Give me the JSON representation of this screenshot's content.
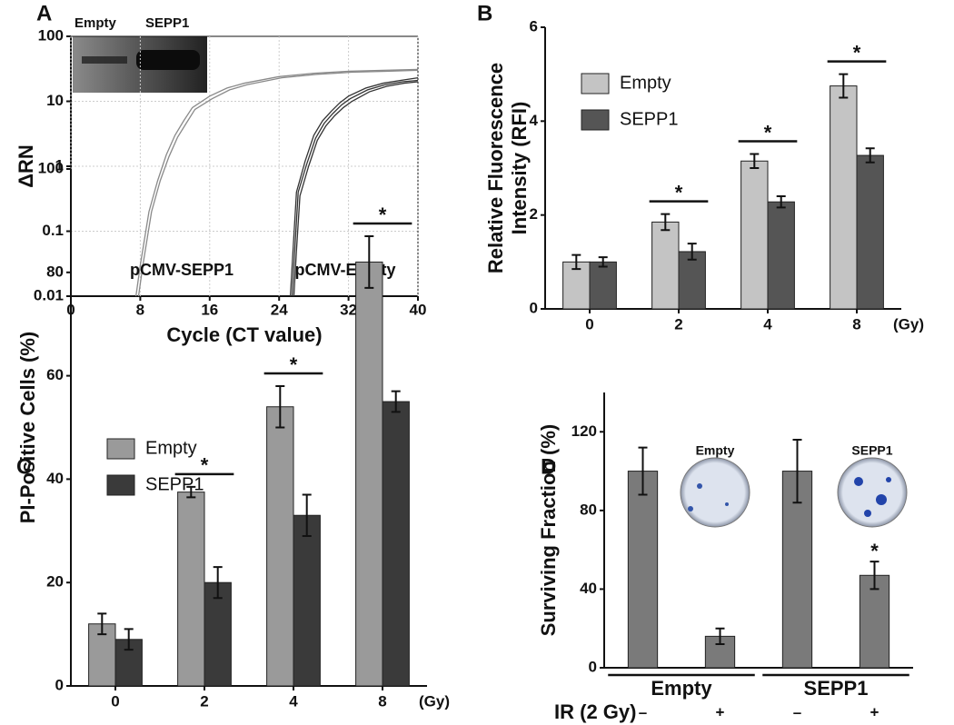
{
  "chart_data": [
    {
      "type": "line",
      "label": "A",
      "xlabel": "Cycle (CT value)",
      "ylabel": "ΔRN",
      "log_y": true,
      "grid": true,
      "xlim": [
        0,
        40
      ],
      "xticks": [
        0,
        8,
        16,
        24,
        32,
        40
      ],
      "ylim": [
        0.01,
        100
      ],
      "yticks": [
        0.01,
        0.1,
        1,
        10,
        100
      ],
      "inset_labels": [
        "Empty",
        "SEPP1"
      ],
      "annotations": [
        "pCMV-SEPP1",
        "pCMV-Empty"
      ],
      "series": [
        {
          "color": "#8a8a8a",
          "x": [
            7.5,
            8,
            9,
            10,
            11,
            12,
            13,
            14,
            16,
            18,
            20,
            24,
            28,
            32,
            36,
            40
          ],
          "values": [
            0.01,
            0.03,
            0.2,
            0.6,
            1.5,
            3,
            5,
            8,
            12,
            16,
            19,
            24,
            27,
            29,
            30,
            31
          ]
        },
        {
          "color": "#8a8a8a",
          "x": [
            7.8,
            8.3,
            9.3,
            10.3,
            11.3,
            12.3,
            13.3,
            14.3,
            16.3,
            18.3,
            20.3,
            24.3,
            28.3,
            32.3,
            36.3,
            40
          ],
          "values": [
            0.01,
            0.03,
            0.2,
            0.6,
            1.4,
            2.8,
            4.6,
            7.5,
            11,
            15,
            18,
            23,
            26,
            28,
            29,
            30
          ]
        },
        {
          "color": "#333333",
          "x": [
            25.3,
            25.6,
            26,
            27,
            28,
            29,
            30,
            31,
            32,
            34,
            36,
            38,
            40
          ],
          "values": [
            0.01,
            0.05,
            0.4,
            1.2,
            3,
            5,
            7,
            9.5,
            12,
            16,
            19,
            21,
            23
          ]
        },
        {
          "color": "#333333",
          "x": [
            25.5,
            25.8,
            26.2,
            27.2,
            28.2,
            29.2,
            30.2,
            31.2,
            32.2,
            34.2,
            36.2,
            38.2,
            40
          ],
          "values": [
            0.01,
            0.05,
            0.4,
            1.1,
            2.7,
            4.6,
            6.5,
            8.8,
            11,
            15,
            18,
            20,
            21
          ]
        },
        {
          "color": "#333333",
          "x": [
            25.7,
            26,
            26.4,
            27.4,
            28.4,
            29.4,
            30.4,
            31.4,
            32.4,
            34.4,
            36.4,
            38.4,
            40
          ],
          "values": [
            0.01,
            0.05,
            0.35,
            1,
            2.5,
            4.2,
            6,
            8,
            10,
            14,
            17,
            19,
            20
          ]
        }
      ]
    },
    {
      "type": "bar",
      "label": "B",
      "ylabel": [
        "Relative Fluorescence",
        "Intensity (RFI)"
      ],
      "x_unit": "(Gy)",
      "categories": [
        "0",
        "2",
        "4",
        "8"
      ],
      "ylim": [
        0,
        6
      ],
      "yticks": [
        0,
        2,
        4,
        6
      ],
      "significance": [
        null,
        "*",
        "*",
        "*"
      ],
      "series": [
        {
          "name": "Empty",
          "color": "#c4c4c4",
          "values": [
            1.0,
            1.85,
            3.15,
            4.75
          ],
          "errors": [
            0.15,
            0.17,
            0.15,
            0.25
          ]
        },
        {
          "name": "SEPP1",
          "color": "#555555",
          "values": [
            1.0,
            1.22,
            2.28,
            3.27
          ],
          "errors": [
            0.1,
            0.17,
            0.12,
            0.15
          ]
        }
      ]
    },
    {
      "type": "bar",
      "label": "C",
      "ylabel": [
        "PI-Positive Cells (%)"
      ],
      "x_unit": "(Gy)",
      "categories": [
        "0",
        "2",
        "4",
        "8"
      ],
      "ylim": [
        0,
        100
      ],
      "yticks": [
        0,
        20,
        40,
        60,
        80,
        100
      ],
      "significance": [
        null,
        "*",
        "*",
        "*"
      ],
      "series": [
        {
          "name": "Empty",
          "color": "#9a9a9a",
          "values": [
            12,
            37.5,
            54,
            82
          ],
          "errors": [
            2,
            1,
            4,
            5
          ]
        },
        {
          "name": "SEPP1",
          "color": "#3a3a3a",
          "values": [
            9,
            20,
            33,
            55
          ],
          "errors": [
            2,
            3,
            4,
            2
          ]
        }
      ]
    },
    {
      "type": "bar",
      "label": "D",
      "ylabel": [
        "Surviving Fraction (%)"
      ],
      "row_label": "IR (2 Gy)",
      "categories": [
        "–",
        "+",
        "–",
        "+"
      ],
      "groups": [
        "Empty",
        "SEPP1"
      ],
      "inset_labels": [
        "Empty",
        "SEPP1"
      ],
      "ylim": [
        0,
        140
      ],
      "yticks": [
        0,
        40,
        80,
        120
      ],
      "significance": [
        null,
        null,
        null,
        "*"
      ],
      "series": [
        {
          "color": "#7a7a7a",
          "values": [
            100,
            16,
            100,
            47
          ],
          "errors": [
            12,
            4,
            16,
            7
          ]
        }
      ]
    }
  ]
}
